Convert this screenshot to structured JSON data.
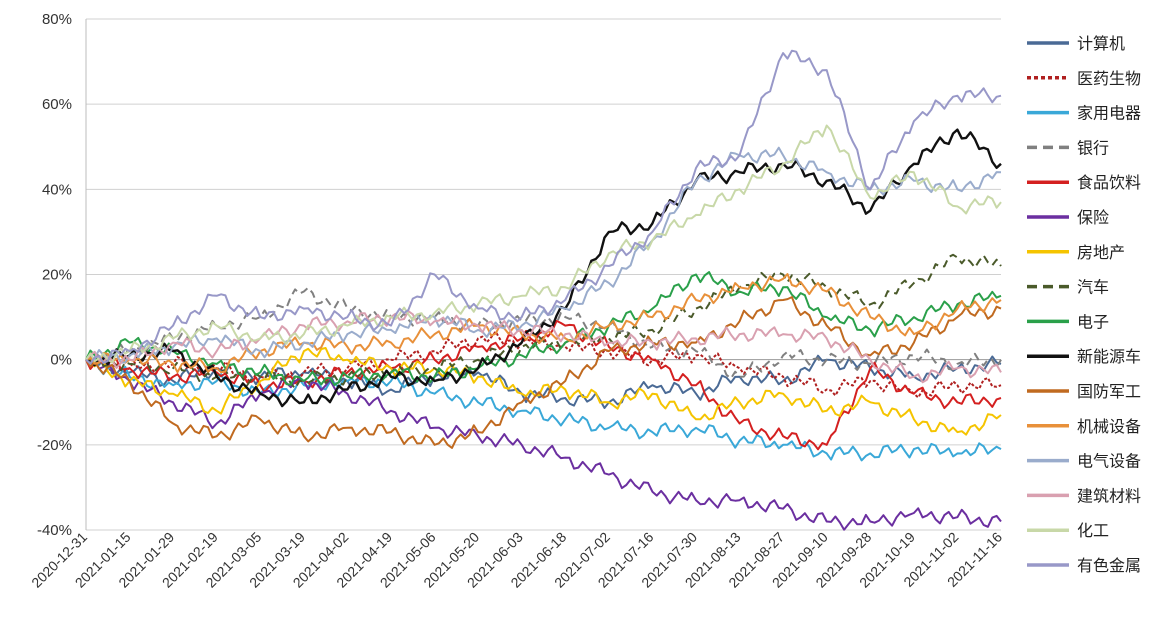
{
  "chart_data": {
    "type": "line",
    "title": "",
    "xlabel": "",
    "ylabel": "",
    "ylim": [
      -40,
      80
    ],
    "yticks": [
      80,
      60,
      40,
      20,
      0,
      -20,
      -40
    ],
    "ytick_labels": [
      "80%",
      "60%",
      "40%",
      "20%",
      "0%",
      "-20%",
      "-40%"
    ],
    "xtick_labels": [
      "2020-12-31",
      "2021-01-15",
      "2021-01-29",
      "2021-02-19",
      "2021-03-05",
      "2021-03-19",
      "2021-04-02",
      "2021-04-19",
      "2021-05-06",
      "2021-05-20",
      "2021-06-03",
      "2021-06-18",
      "2021-07-02",
      "2021-07-16",
      "2021-07-30",
      "2021-08-13",
      "2021-08-27",
      "2021-09-10",
      "2021-09-28",
      "2021-10-19",
      "2021-11-02",
      "2021-11-16"
    ],
    "grid": true,
    "legend_position": "right",
    "series": [
      {
        "name": "计算机",
        "color": "#4a6a95",
        "dash": "solid",
        "values": [
          0,
          -3,
          -5,
          -2,
          -4,
          -3,
          -5,
          -7,
          -4,
          -3,
          -8,
          -9,
          -10,
          -6,
          -8,
          -4,
          -5,
          0,
          -2,
          -4,
          -2,
          -1
        ]
      },
      {
        "name": "医药生物",
        "color": "#b02020",
        "dash": "star",
        "values": [
          0,
          -2,
          -1,
          -2,
          -4,
          -3,
          -2,
          0,
          2,
          5,
          4,
          3,
          2,
          0,
          1,
          -2,
          -4,
          -7,
          -5,
          -8,
          -6,
          -6
        ]
      },
      {
        "name": "家用电器",
        "color": "#3aa8d8",
        "dash": "solid",
        "values": [
          0,
          -4,
          -6,
          -5,
          -8,
          -6,
          -5,
          -5,
          -8,
          -10,
          -12,
          -14,
          -16,
          -17,
          -16,
          -19,
          -20,
          -22,
          -22,
          -21,
          -22,
          -21
        ]
      },
      {
        "name": "银行",
        "color": "#808080",
        "dash": "dashed",
        "values": [
          0,
          2,
          5,
          8,
          10,
          16,
          12,
          10,
          10,
          8,
          9,
          10,
          8,
          3,
          2,
          -4,
          1,
          0,
          -1,
          1,
          -1,
          0
        ]
      },
      {
        "name": "食品饮料",
        "color": "#d42020",
        "dash": "solid",
        "values": [
          0,
          -2,
          -4,
          -3,
          -6,
          -5,
          -3,
          -2,
          0,
          3,
          5,
          8,
          3,
          0,
          -6,
          -15,
          -18,
          -20,
          -2,
          -8,
          -10,
          -9
        ]
      },
      {
        "name": "保险",
        "color": "#6b2fa0",
        "dash": "solid",
        "values": [
          0,
          -5,
          -10,
          -15,
          -8,
          -5,
          -8,
          -12,
          -16,
          -18,
          -20,
          -23,
          -27,
          -31,
          -33,
          -33,
          -35,
          -38,
          -38,
          -36,
          -37,
          -38
        ]
      },
      {
        "name": "房地产",
        "color": "#f5c400",
        "dash": "solid",
        "values": [
          0,
          -5,
          -8,
          -12,
          -5,
          2,
          0,
          -2,
          -2,
          -4,
          -8,
          -7,
          -10,
          -8,
          -14,
          -10,
          -8,
          -12,
          -10,
          -14,
          -17,
          -13
        ]
      },
      {
        "name": "汽车",
        "color": "#4a5a2a",
        "dash": "dashed",
        "values": [
          0,
          -1,
          -2,
          -4,
          -4,
          -5,
          -4,
          -3,
          -2,
          0,
          3,
          4,
          5,
          7,
          12,
          17,
          20,
          17,
          13,
          18,
          24,
          22
        ]
      },
      {
        "name": "电子",
        "color": "#2aa04a",
        "dash": "solid",
        "values": [
          0,
          4,
          2,
          -1,
          -3,
          -5,
          -4,
          -3,
          -4,
          -2,
          1,
          4,
          8,
          12,
          20,
          16,
          17,
          10,
          7,
          10,
          13,
          15
        ]
      },
      {
        "name": "新能源车",
        "color": "#111111",
        "dash": "solid",
        "values": [
          0,
          1,
          2,
          -4,
          -8,
          -10,
          -7,
          -4,
          -5,
          -2,
          4,
          12,
          30,
          32,
          42,
          44,
          46,
          42,
          35,
          46,
          54,
          46
        ]
      },
      {
        "name": "国防军工",
        "color": "#c06a20",
        "dash": "solid",
        "values": [
          0,
          -5,
          -15,
          -18,
          -14,
          -18,
          -16,
          -17,
          -20,
          -17,
          -10,
          -5,
          2,
          4,
          4,
          9,
          14,
          8,
          1,
          4,
          10,
          12
        ]
      },
      {
        "name": "机械设备",
        "color": "#e8903a",
        "dash": "solid",
        "values": [
          0,
          0,
          -1,
          -2,
          2,
          4,
          3,
          4,
          6,
          8,
          6,
          5,
          8,
          10,
          14,
          17,
          19,
          16,
          10,
          6,
          12,
          14
        ]
      },
      {
        "name": "电气设备",
        "color": "#9aaccc",
        "dash": "solid",
        "values": [
          0,
          1,
          3,
          5,
          2,
          4,
          6,
          7,
          10,
          7,
          8,
          12,
          18,
          28,
          42,
          48,
          48,
          44,
          40,
          42,
          40,
          44
        ]
      },
      {
        "name": "建筑材料",
        "color": "#d9a0b0",
        "dash": "solid",
        "values": [
          0,
          0,
          4,
          2,
          5,
          8,
          9,
          10,
          9,
          8,
          7,
          6,
          4,
          4,
          5,
          6,
          6,
          5,
          0,
          -4,
          -2,
          -3
        ]
      },
      {
        "name": "化工",
        "color": "#c8d8a8",
        "dash": "solid",
        "values": [
          0,
          2,
          5,
          8,
          5,
          6,
          8,
          10,
          11,
          13,
          15,
          17,
          25,
          28,
          34,
          40,
          46,
          55,
          38,
          44,
          36,
          37
        ]
      },
      {
        "name": "有色金属",
        "color": "#9898c8",
        "dash": "solid",
        "values": [
          0,
          2,
          8,
          15,
          10,
          12,
          10,
          8,
          20,
          12,
          10,
          14,
          22,
          30,
          45,
          48,
          72,
          68,
          40,
          56,
          62,
          62
        ]
      }
    ]
  }
}
